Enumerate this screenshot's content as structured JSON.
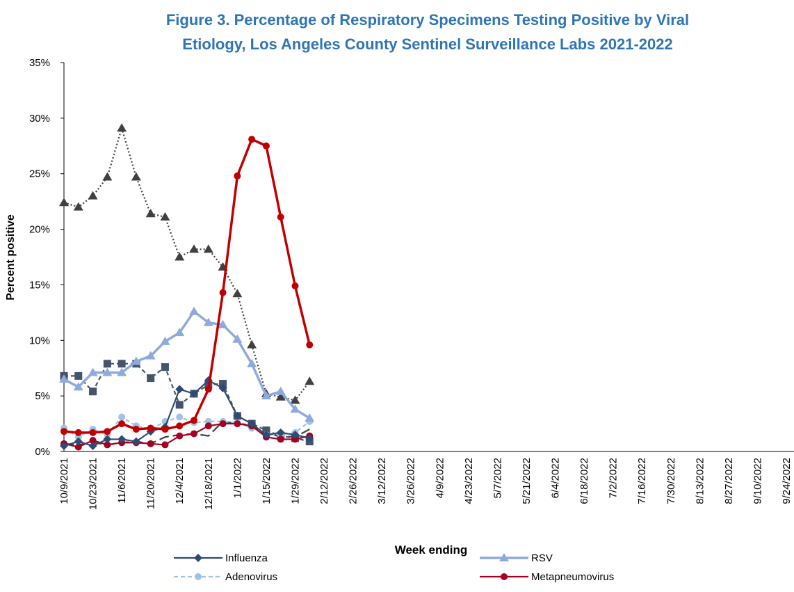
{
  "chart_data": {
    "type": "line",
    "title": [
      "Figure 3. Percentage of Respiratory Specimens Testing Positive by Viral",
      "Etiology, Los Angeles County Sentinel Surveillance Labs 2021-2022"
    ],
    "x_label": "Week ending",
    "y_label": "Percent positive",
    "ylim": [
      0,
      35
    ],
    "yticks": [
      {
        "value": 0,
        "label": "0%"
      },
      {
        "value": 5,
        "label": "5%"
      },
      {
        "value": 10,
        "label": "10%"
      },
      {
        "value": 15,
        "label": "15%"
      },
      {
        "value": 20,
        "label": "20%"
      },
      {
        "value": 25,
        "label": "25%"
      },
      {
        "value": 30,
        "label": "30%"
      },
      {
        "value": 35,
        "label": "35%"
      }
    ],
    "grid": false,
    "categories": [
      "10/9/2021",
      null,
      "10/23/2021",
      null,
      "11/6/2021",
      null,
      "11/20/2021",
      null,
      "12/4/2021",
      null,
      "12/18/2021",
      null,
      "1/1/2022",
      null,
      "1/15/2022",
      null,
      "1/29/2022",
      null,
      "2/12/2022",
      null,
      "2/26/2022",
      null,
      "3/12/2022",
      null,
      "3/26/2022",
      null,
      "4/9/2022",
      null,
      "4/23/2022",
      null,
      "5/7/2022",
      null,
      "5/21/2022",
      null,
      "6/4/2022",
      null,
      "6/18/2022",
      null,
      "7/2/2022",
      null,
      "7/16/2022",
      null,
      "7/30/2022",
      null,
      "8/13/2022",
      null,
      "8/27/2022",
      null,
      "9/10/2022",
      null,
      "9/24/2022"
    ],
    "series": [
      {
        "color": "#404040",
        "line": "dotted",
        "weight": "normal",
        "marker": "triangle",
        "values": [
          22.4,
          22.0,
          23.0,
          24.7,
          29.1,
          24.7,
          21.4,
          21.1,
          17.5,
          18.2,
          18.2,
          16.6,
          14.2,
          9.6,
          5.2,
          4.9,
          4.6,
          6.3,
          null,
          null,
          null,
          null,
          null,
          null,
          null,
          null,
          null,
          null,
          null,
          null,
          null,
          null,
          null,
          null,
          null,
          null,
          null,
          null,
          null,
          null,
          null,
          null,
          null,
          null,
          null,
          null,
          null,
          null,
          null,
          null,
          null
        ]
      },
      {
        "color": "#44546a",
        "line": "dashed",
        "weight": "normal",
        "marker": "square",
        "values": [
          6.8,
          6.8,
          5.4,
          7.9,
          7.9,
          7.9,
          6.6,
          7.6,
          4.2,
          5.2,
          6.0,
          6.1,
          3.2,
          2.5,
          1.9,
          1.4,
          1.2,
          0.9,
          null,
          null,
          null,
          null,
          null,
          null,
          null,
          null,
          null,
          null,
          null,
          null,
          null,
          null,
          null,
          null,
          null,
          null,
          null,
          null,
          null,
          null,
          null,
          null,
          null,
          null,
          null,
          null,
          null,
          null,
          null,
          null,
          null
        ]
      },
      {
        "color": "#404040",
        "line": "longdash",
        "weight": "normal",
        "marker": "none",
        "values": [
          0.7,
          0.6,
          0.8,
          0.6,
          0.8,
          0.9,
          0.7,
          1.3,
          1.5,
          1.6,
          1.4,
          2.7,
          2.5,
          2.4,
          1.5,
          1.4,
          1.3,
          2.0,
          null,
          null,
          null,
          null,
          null,
          null,
          null,
          null,
          null,
          null,
          null,
          null,
          null,
          null,
          null,
          null,
          null,
          null,
          null,
          null,
          null,
          null,
          null,
          null,
          null,
          null,
          null,
          null,
          null,
          null,
          null,
          null,
          null
        ]
      },
      {
        "name": "Adenovirus",
        "color": "#9dc3e6",
        "line": "dashed",
        "weight": "normal",
        "marker": "circle",
        "values": [
          2.1,
          1.3,
          2.0,
          1.5,
          3.1,
          2.3,
          2.0,
          2.7,
          3.1,
          2.6,
          2.7,
          2.7,
          2.6,
          2.1,
          1.5,
          1.5,
          1.7,
          2.7,
          null,
          null,
          null,
          null,
          null,
          null,
          null,
          null,
          null,
          null,
          null,
          null,
          null,
          null,
          null,
          null,
          null,
          null,
          null,
          null,
          null,
          null,
          null,
          null,
          null,
          null,
          null,
          null,
          null,
          null,
          null,
          null,
          null
        ]
      },
      {
        "name": "Metapneumovirus",
        "color": "#a50021",
        "line": "solid",
        "weight": "normal",
        "marker": "circle",
        "values": [
          0.7,
          0.4,
          1.0,
          0.6,
          0.8,
          0.8,
          0.7,
          0.6,
          1.4,
          1.6,
          2.3,
          2.5,
          2.5,
          2.3,
          1.3,
          1.1,
          1.1,
          1.4,
          null,
          null,
          null,
          null,
          null,
          null,
          null,
          null,
          null,
          null,
          null,
          null,
          null,
          null,
          null,
          null,
          null,
          null,
          null,
          null,
          null,
          null,
          null,
          null,
          null,
          null,
          null,
          null,
          null,
          null,
          null,
          null,
          null
        ]
      },
      {
        "name": "RSV",
        "color": "#8eaadc",
        "line": "solid",
        "weight": "bold",
        "marker": "triangle",
        "values": [
          6.5,
          5.8,
          7.1,
          7.1,
          7.1,
          8.1,
          8.6,
          9.9,
          10.7,
          12.6,
          11.6,
          11.4,
          10.1,
          7.9,
          5.0,
          5.4,
          3.8,
          3.0,
          null,
          null,
          null,
          null,
          null,
          null,
          null,
          null,
          null,
          null,
          null,
          null,
          null,
          null,
          null,
          null,
          null,
          null,
          null,
          null,
          null,
          null,
          null,
          null,
          null,
          null,
          null,
          null,
          null,
          null,
          null,
          null,
          null
        ]
      },
      {
        "name": "Influenza",
        "color": "#2f4a73",
        "line": "solid",
        "weight": "normal",
        "marker": "diamond",
        "values": [
          0.5,
          0.9,
          0.5,
          1.1,
          1.1,
          0.9,
          1.8,
          2.2,
          5.6,
          5.2,
          6.4,
          5.7,
          3.2,
          2.5,
          1.5,
          1.7,
          1.5,
          1.2,
          null,
          null,
          null,
          null,
          null,
          null,
          null,
          null,
          null,
          null,
          null,
          null,
          null,
          null,
          null,
          null,
          null,
          null,
          null,
          null,
          null,
          null,
          null,
          null,
          null,
          null,
          null,
          null,
          null,
          null,
          null,
          null,
          null
        ]
      },
      {
        "color": "#c00000",
        "line": "solid",
        "weight": "bold",
        "marker": "circle",
        "values": [
          1.8,
          1.7,
          1.7,
          1.8,
          2.5,
          2.0,
          2.1,
          2.0,
          2.3,
          2.8,
          5.6,
          14.3,
          24.8,
          28.1,
          27.5,
          21.1,
          14.9,
          9.6,
          null,
          null,
          null,
          null,
          null,
          null,
          null,
          null,
          null,
          null,
          null,
          null,
          null,
          null,
          null,
          null,
          null,
          null,
          null,
          null,
          null,
          null,
          null,
          null,
          null,
          null,
          null,
          null,
          null,
          null,
          null,
          null,
          null
        ]
      }
    ],
    "legend_order": [
      6,
      5,
      3,
      4
    ]
  }
}
